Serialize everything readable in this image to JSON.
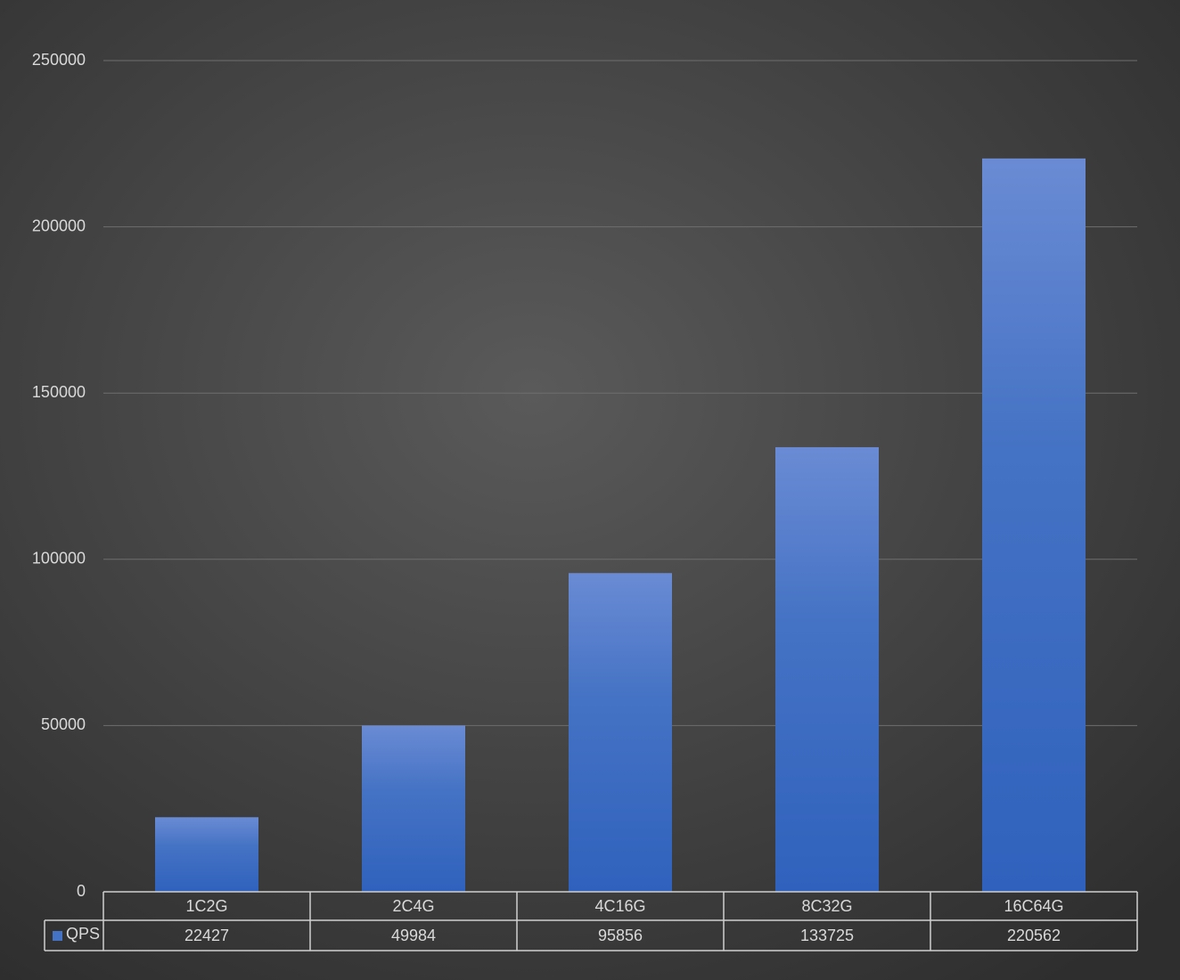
{
  "chart_data": {
    "type": "bar",
    "categories": [
      "1C2G",
      "2C4G",
      "4C16G",
      "8C32G",
      "16C64G"
    ],
    "series": [
      {
        "name": "QPS",
        "color": "#4472c4",
        "values": [
          22427,
          49984,
          95856,
          133725,
          220562
        ]
      }
    ],
    "ylim": [
      0,
      250000
    ],
    "yticks": [
      0,
      50000,
      100000,
      150000,
      200000,
      250000
    ],
    "grid": true,
    "data_table": true
  }
}
